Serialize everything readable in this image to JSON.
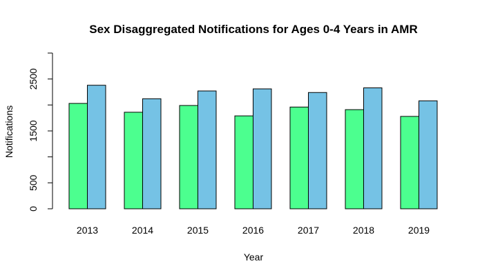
{
  "chart_data": {
    "type": "bar",
    "title": "Sex Disaggregated Notifications for Ages 0-4 Years in AMR",
    "xlabel": "Year",
    "ylabel": "Notifications",
    "categories": [
      "2013",
      "2014",
      "2015",
      "2016",
      "2017",
      "2018",
      "2019"
    ],
    "series": [
      {
        "color": "#4cff8f",
        "values": [
          2030,
          1860,
          1990,
          1790,
          1960,
          1910,
          1780
        ]
      },
      {
        "color": "#75c2e5",
        "values": [
          2380,
          2120,
          2270,
          2310,
          2240,
          2330,
          2080
        ]
      }
    ],
    "ylim": [
      0,
      3000
    ],
    "y_ticks": [
      0,
      500,
      1500,
      2500
    ],
    "y_tick_marks": [
      0,
      500,
      1000,
      1500,
      2000,
      2500,
      3000
    ],
    "grid": false,
    "legend": "none"
  }
}
